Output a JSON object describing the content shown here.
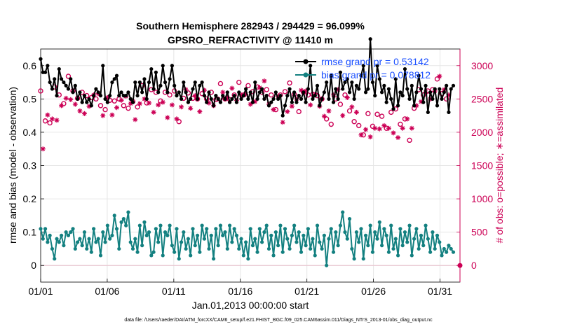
{
  "chart_data": {
    "type": "line",
    "title_line1": "Southern Hemisphere 282943 / 294429 = 96.099%",
    "title_line2": "GPSRO_REFRACTIVITY @ 11410 m",
    "xlabel": "Jan.01,2013 00:00:00 start",
    "ylabel_left": "rmse and bias (model - observation)",
    "ylabel_right": "# of obs: o=possible; ∗=assimilated",
    "footnote": "data file: /Users/raeder/DAI/ATM_forcXX/CAM6_setup/f.e21.FHIST_BGC.f09_025.CAM6assim.011/Diags_NTrS_2013-01/obs_diag_output.nc",
    "xlim": [
      0,
      31.5
    ],
    "ylim_left": [
      -0.05,
      0.65
    ],
    "ylim_right": [
      -250,
      3250
    ],
    "x_tick_values": [
      0,
      5,
      10,
      15,
      20,
      25,
      30
    ],
    "x_tick_labels": [
      "01/01",
      "01/06",
      "01/11",
      "01/16",
      "01/21",
      "01/26",
      "01/31"
    ],
    "y_left_ticks": [
      0,
      0.1,
      0.2,
      0.3,
      0.4,
      0.5,
      0.6
    ],
    "y_left_tick_labels": [
      "0",
      "0.1",
      "0.2",
      "0.3",
      "0.4",
      "0.5",
      "0.6"
    ],
    "y_right_ticks": [
      0,
      500,
      1000,
      1500,
      2000,
      2500,
      3000
    ],
    "y_right_tick_labels": [
      "0",
      "500",
      "1000",
      "1500",
      "2000",
      "2500",
      "3000"
    ],
    "legend": {
      "rmse_label": "rmse grand pr = 0.53142",
      "bias_label": "bias grand pr = 0.078812"
    },
    "colors": {
      "rmse": "#000000",
      "bias": "#138080",
      "obs": "#cc0055",
      "legend_text": "#1a4fff",
      "grid": "#e6e6e6"
    },
    "series": [
      {
        "name": "rmse",
        "axis": "left",
        "values": [
          0.62,
          0.58,
          0.58,
          0.6,
          0.55,
          0.53,
          0.56,
          0.51,
          0.59,
          0.56,
          0.55,
          0.54,
          0.53,
          0.56,
          0.52,
          0.54,
          0.5,
          0.52,
          0.49,
          0.51,
          0.49,
          0.5,
          0.48,
          0.51,
          0.53,
          0.52,
          0.51,
          0.6,
          0.5,
          0.49,
          0.51,
          0.55,
          0.56,
          0.57,
          0.51,
          0.52,
          0.51,
          0.51,
          0.52,
          0.5,
          0.49,
          0.55,
          0.51,
          0.55,
          0.52,
          0.56,
          0.5,
          0.55,
          0.59,
          0.53,
          0.58,
          0.52,
          0.54,
          0.6,
          0.55,
          0.52,
          0.56,
          0.6,
          0.54,
          0.51,
          0.52,
          0.5,
          0.55,
          0.52,
          0.49,
          0.5,
          0.53,
          0.55,
          0.5,
          0.54,
          0.55,
          0.51,
          0.49,
          0.52,
          0.5,
          0.48,
          0.51,
          0.5,
          0.49,
          0.51,
          0.5,
          0.52,
          0.49,
          0.5,
          0.51,
          0.49,
          0.52,
          0.5,
          0.51,
          0.53,
          0.5,
          0.52,
          0.49,
          0.55,
          0.5,
          0.52,
          0.53,
          0.5,
          0.51,
          0.48,
          0.49,
          0.5,
          0.52,
          0.5,
          0.51,
          0.45,
          0.48,
          0.51,
          0.53,
          0.49,
          0.52,
          0.49,
          0.51,
          0.5,
          0.52,
          0.49,
          0.53,
          0.6,
          0.5,
          0.51,
          0.54,
          0.48,
          0.5,
          0.52,
          0.55,
          0.5,
          0.57,
          0.49,
          0.53,
          0.5,
          0.58,
          0.53,
          0.55,
          0.56,
          0.52,
          0.55,
          0.5,
          0.54,
          0.53,
          0.57,
          0.6,
          0.52,
          0.53,
          0.68,
          0.55,
          0.51,
          0.6,
          0.56,
          0.52,
          0.54,
          0.49,
          0.53,
          0.5,
          0.47,
          0.56,
          0.48,
          0.52,
          0.51,
          0.59,
          0.53,
          0.5,
          0.54,
          0.48,
          0.52,
          0.57,
          0.53,
          0.49,
          0.54,
          0.46,
          0.52,
          0.5,
          0.53,
          0.48,
          0.53,
          0.5,
          0.52,
          0.54,
          0.46,
          0.53,
          0.54
        ]
      },
      {
        "name": "bias",
        "axis": "left",
        "values": [
          0.11,
          0.08,
          0.11,
          0.07,
          0.09,
          0.05,
          0.02,
          0.08,
          0.07,
          0.09,
          0.06,
          0.1,
          0.09,
          0.1,
          0.11,
          0.05,
          0.07,
          0.08,
          0.06,
          0.1,
          0.05,
          0.08,
          0.04,
          0.11,
          0.07,
          0.08,
          0.03,
          0.1,
          0.07,
          0.12,
          0.08,
          0.09,
          0.15,
          0.11,
          0.05,
          0.13,
          0.14,
          0.12,
          0.16,
          0.07,
          0.05,
          0.08,
          0.04,
          0.12,
          0.06,
          0.13,
          0.09,
          0.1,
          0.03,
          0.04,
          0.11,
          0.07,
          0.12,
          0.03,
          0.1,
          0.09,
          0.12,
          0.06,
          0.04,
          0.11,
          0.02,
          0.07,
          0.1,
          0.05,
          0.08,
          0.03,
          0.11,
          0.06,
          0.09,
          0.04,
          0.12,
          0.08,
          0.11,
          0.05,
          0.09,
          0.02,
          0.11,
          0.06,
          0.12,
          0.09,
          0.1,
          0.05,
          0.12,
          0.07,
          0.11,
          0.09,
          0.05,
          0.08,
          0.03,
          0.07,
          0.02,
          0.11,
          0.06,
          0.08,
          0.04,
          0.11,
          0.07,
          0.1,
          0.12,
          0.05,
          0.09,
          0.03,
          0.1,
          0.06,
          0.12,
          0.04,
          0.11,
          0.08,
          0.05,
          0.09,
          0.12,
          0.07,
          0.1,
          0.04,
          0.09,
          0.06,
          0.11,
          0.05,
          0.08,
          0.03,
          0.12,
          0.07,
          0.05,
          0.09,
          0.0,
          0.08,
          0.11,
          0.04,
          0.1,
          0.06,
          0.12,
          0.16,
          0.1,
          0.08,
          0.14,
          0.05,
          0.02,
          0.1,
          0.07,
          0.11,
          0.02,
          0.09,
          0.06,
          0.12,
          0.04,
          0.1,
          0.08,
          0.13,
          0.06,
          0.11,
          0.09,
          0.04,
          0.12,
          0.05,
          0.08,
          0.03,
          0.11,
          0.06,
          0.1,
          0.07,
          0.12,
          0.03,
          0.08,
          0.11,
          0.05,
          0.09,
          0.06,
          0.12,
          0.08,
          0.04,
          0.1,
          0.05,
          0.09,
          0.07,
          0.03,
          0.05,
          0.04,
          0.06,
          0.05,
          0.04
        ]
      },
      {
        "name": "obs_possible",
        "axis": "right",
        "values": [
          2620,
          1900,
          2170,
          2340,
          2140,
          2280,
          2680,
          2260,
          2560,
          2480,
          2430,
          2590,
          2840,
          2570,
          2620,
          2500,
          2510,
          2400,
          2600,
          2360,
          2550,
          2470,
          2520,
          2640,
          2500,
          2660,
          2400,
          2330,
          2340,
          2600,
          2480,
          2340,
          2470,
          2450,
          2500,
          2560,
          2400,
          2620,
          2360,
          2510,
          2460,
          2270,
          2380,
          2510,
          2700,
          2580,
          2440,
          2520,
          2640,
          2380,
          2600,
          2490,
          2470,
          2530,
          2600,
          2300,
          2560,
          2490,
          2620,
          2280,
          2160,
          2460,
          2510,
          2720,
          2590,
          2440,
          2510,
          2630,
          2500,
          2390,
          2580,
          2710,
          2500,
          2520,
          2600,
          2480,
          2490,
          2580,
          2730,
          2680,
          2500,
          2600,
          2490,
          2740,
          2560,
          2560,
          2750,
          2640,
          2560,
          2650,
          2700,
          2500,
          2610,
          2540,
          2680,
          2750,
          2600,
          2850,
          2640,
          2500,
          2560,
          2420,
          2340,
          2620,
          2560,
          2230,
          2610,
          2390,
          2740,
          2470,
          2570,
          2580,
          2310,
          2710,
          2600,
          2700,
          2560,
          2490,
          2570,
          2650,
          2550,
          2470,
          2500,
          2320,
          2200,
          2400,
          2120,
          2640,
          2500,
          2720,
          2420,
          2330,
          2560,
          2600,
          2320,
          2460,
          2160,
          2380,
          2100,
          2040,
          1960,
          2120,
          2280,
          2010,
          2090,
          2140,
          2270,
          2130,
          2240,
          2180,
          2060,
          2140,
          2300,
          2070,
          2350,
          2000,
          2120,
          2140,
          2200,
          2280,
          1880,
          2140,
          2360,
          2480,
          2640,
          2540,
          2560,
          2680,
          2620,
          2580,
          2640,
          2700,
          2800,
          2920,
          2580,
          2720,
          2500,
          2640
        ]
      },
      {
        "name": "obs_assimilated",
        "axis": "right",
        "values": [
          2540,
          1750,
          2100,
          2260,
          2060,
          2200,
          2600,
          2180,
          2480,
          2400,
          2350,
          2510,
          2760,
          2490,
          2540,
          2420,
          2430,
          2320,
          2520,
          2280,
          2470,
          2390,
          2440,
          2560,
          2420,
          2580,
          2320,
          2250,
          2260,
          2520,
          2400,
          2260,
          2390,
          2370,
          2420,
          2480,
          2320,
          2540,
          2280,
          2430,
          2380,
          2190,
          2300,
          2430,
          2620,
          2500,
          2360,
          2440,
          2560,
          2300,
          2520,
          2410,
          2390,
          2450,
          2520,
          2220,
          2480,
          2410,
          2540,
          2200,
          2080,
          2380,
          2430,
          2640,
          2510,
          2360,
          2430,
          2550,
          2420,
          2310,
          2500,
          2630,
          2420,
          2440,
          2520,
          2400,
          2410,
          2500,
          2650,
          2600,
          2420,
          2520,
          2410,
          2660,
          2480,
          2480,
          2670,
          2560,
          2480,
          2570,
          2620,
          2420,
          2530,
          2460,
          2600,
          2670,
          2520,
          2770,
          2560,
          2420,
          2480,
          2340,
          2260,
          2540,
          2480,
          2150,
          2530,
          2310,
          2660,
          2390,
          2490,
          2500,
          2230,
          2630,
          2520,
          2620,
          2480,
          2410,
          2490,
          2570,
          2470,
          2390,
          2420,
          2240,
          2120,
          2320,
          2040,
          2560,
          2420,
          2640,
          2340,
          2250,
          2480,
          2520,
          2240,
          2380,
          2080,
          2300,
          2020,
          1960,
          1880,
          2040,
          2200,
          1930,
          2010,
          2060,
          2190,
          2050,
          2160,
          2100,
          1980,
          2060,
          2220,
          1990,
          2270,
          1920,
          2040,
          2060,
          2120,
          2200,
          1800,
          2060,
          2280,
          2400,
          2560,
          2460,
          2480,
          2600,
          2540,
          2500,
          2560,
          2620,
          2720,
          2840,
          2500,
          2640,
          2420,
          2560
        ]
      }
    ],
    "last_point_obs_zero": 0
  }
}
